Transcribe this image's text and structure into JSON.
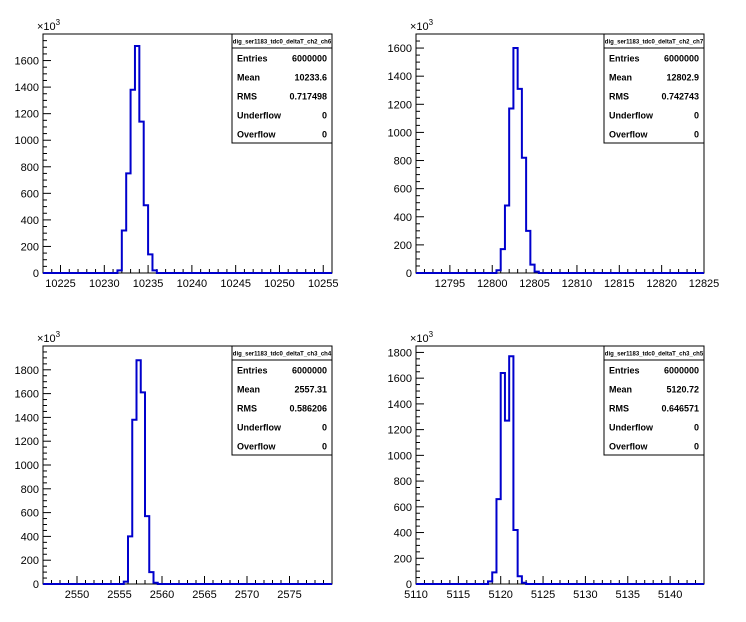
{
  "chart_data": [
    {
      "type": "histogram",
      "title": "dig_ser1183_tdc0_deltaT_ch2_ch6",
      "y_multiplier": "×10",
      "y_multiplier_exp": "3",
      "xlim": [
        10223,
        10256
      ],
      "ylim": [
        0,
        1800
      ],
      "x_ticks": [
        10225,
        10230,
        10235,
        10240,
        10245,
        10250,
        10255
      ],
      "y_ticks": [
        0,
        200,
        400,
        600,
        800,
        1000,
        1200,
        1400,
        1600
      ],
      "bin_width": 0.5,
      "bins": [
        [
          10231.5,
          20
        ],
        [
          10232,
          320
        ],
        [
          10232.5,
          750
        ],
        [
          10233,
          1380
        ],
        [
          10233.5,
          1710
        ],
        [
          10234,
          1140
        ],
        [
          10234.5,
          510
        ],
        [
          10235,
          140
        ],
        [
          10235.5,
          20
        ]
      ],
      "stats": [
        {
          "label": "Entries",
          "value": "6000000"
        },
        {
          "label": "Mean",
          "value": "10233.6"
        },
        {
          "label": "RMS",
          "value": "0.717498"
        },
        {
          "label": "Underflow",
          "value": "0"
        },
        {
          "label": "Overflow",
          "value": "0"
        }
      ]
    },
    {
      "type": "histogram",
      "title": "dig_ser1183_tdc0_deltaT_ch2_ch7",
      "y_multiplier": "×10",
      "y_multiplier_exp": "3",
      "xlim": [
        12791,
        12825
      ],
      "ylim": [
        0,
        1700
      ],
      "x_ticks": [
        12795,
        12800,
        12805,
        12810,
        12815,
        12820,
        12825
      ],
      "y_ticks": [
        0,
        200,
        400,
        600,
        800,
        1000,
        1200,
        1400,
        1600
      ],
      "bin_width": 0.5,
      "bins": [
        [
          12800.5,
          20
        ],
        [
          12801,
          170
        ],
        [
          12801.5,
          480
        ],
        [
          12802,
          1170
        ],
        [
          12802.5,
          1600
        ],
        [
          12803,
          1310
        ],
        [
          12803.5,
          820
        ],
        [
          12804,
          300
        ],
        [
          12804.5,
          60
        ],
        [
          12805,
          10
        ]
      ],
      "stats": [
        {
          "label": "Entries",
          "value": "6000000"
        },
        {
          "label": "Mean",
          "value": "12802.9"
        },
        {
          "label": "RMS",
          "value": "0.742743"
        },
        {
          "label": "Underflow",
          "value": "0"
        },
        {
          "label": "Overflow",
          "value": "0"
        }
      ]
    },
    {
      "type": "histogram",
      "title": "dig_ser1183_tdc0_deltaT_ch3_ch4",
      "y_multiplier": "×10",
      "y_multiplier_exp": "3",
      "xlim": [
        2546,
        2580
      ],
      "ylim": [
        0,
        2000
      ],
      "x_ticks": [
        2550,
        2555,
        2560,
        2565,
        2570,
        2575
      ],
      "y_ticks": [
        0,
        200,
        400,
        600,
        800,
        1000,
        1200,
        1400,
        1600,
        1800
      ],
      "bin_width": 0.5,
      "bins": [
        [
          2555.5,
          20
        ],
        [
          2556,
          400
        ],
        [
          2556.5,
          1380
        ],
        [
          2557,
          1880
        ],
        [
          2557.5,
          1610
        ],
        [
          2558,
          570
        ],
        [
          2558.5,
          100
        ],
        [
          2559,
          10
        ]
      ],
      "stats": [
        {
          "label": "Entries",
          "value": "6000000"
        },
        {
          "label": "Mean",
          "value": "2557.31"
        },
        {
          "label": "RMS",
          "value": "0.586206"
        },
        {
          "label": "Underflow",
          "value": "0"
        },
        {
          "label": "Overflow",
          "value": "0"
        }
      ]
    },
    {
      "type": "histogram",
      "title": "dig_ser1183_tdc0_deltaT_ch3_ch5",
      "y_multiplier": "×10",
      "y_multiplier_exp": "3",
      "xlim": [
        5110,
        5144
      ],
      "ylim": [
        0,
        1850
      ],
      "x_ticks": [
        5110,
        5115,
        5120,
        5125,
        5130,
        5135,
        5140
      ],
      "y_ticks": [
        0,
        200,
        400,
        600,
        800,
        1000,
        1200,
        1400,
        1600,
        1800
      ],
      "bin_width": 0.5,
      "bins": [
        [
          5118.5,
          20
        ],
        [
          5119,
          90
        ],
        [
          5119.5,
          660
        ],
        [
          5120,
          1640
        ],
        [
          5120.5,
          1270
        ],
        [
          5121,
          1770
        ],
        [
          5121.5,
          420
        ],
        [
          5122,
          60
        ],
        [
          5122.5,
          10
        ]
      ],
      "stats": [
        {
          "label": "Entries",
          "value": "6000000"
        },
        {
          "label": "Mean",
          "value": "5120.72"
        },
        {
          "label": "RMS",
          "value": "0.646571"
        },
        {
          "label": "Underflow",
          "value": "0"
        },
        {
          "label": "Overflow",
          "value": "0"
        }
      ]
    }
  ],
  "colors": {
    "histogram_line": "#0000cc",
    "axis": "#000000",
    "background": "#ffffff"
  }
}
